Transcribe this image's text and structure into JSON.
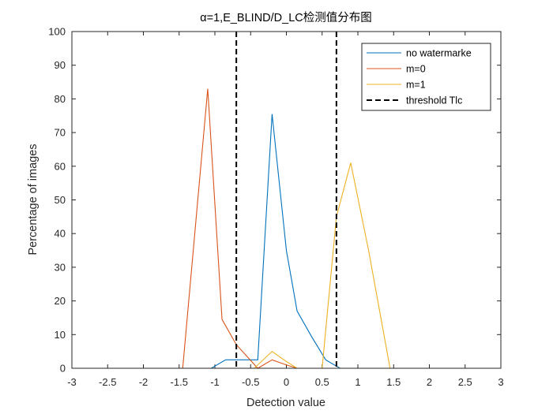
{
  "chart_data": {
    "type": "line",
    "title": "α=1,E_BLIND/D_LC检测值分布图",
    "xlabel": "Detection value",
    "ylabel": "Percentage of images",
    "xlim": [
      -3,
      3
    ],
    "ylim": [
      0,
      100
    ],
    "xticks": [
      -3,
      -2.5,
      -2,
      -1.5,
      -1,
      -0.5,
      0,
      0.5,
      1,
      1.5,
      2,
      2.5,
      3
    ],
    "xtick_labels": [
      "-3",
      "-2.5",
      "-2",
      "-1.5",
      "-1",
      "-0.5",
      "0",
      "0.5",
      "1",
      "1.5",
      "2",
      "2.5",
      "3"
    ],
    "yticks": [
      0,
      10,
      20,
      30,
      40,
      50,
      60,
      70,
      80,
      90,
      100
    ],
    "ytick_labels": [
      "0",
      "10",
      "20",
      "30",
      "40",
      "50",
      "60",
      "70",
      "80",
      "90",
      "100"
    ],
    "grid": false,
    "box": true,
    "legend_location": "top-right",
    "series": [
      {
        "name": "no watermarke",
        "color": "#0072BD",
        "line_style": "solid",
        "x": [
          -3,
          -1.05,
          -0.85,
          -0.6,
          -0.4,
          -0.2,
          0,
          0.15,
          0.35,
          0.55,
          0.75,
          3
        ],
        "y": [
          0,
          0,
          2.5,
          2.5,
          2.5,
          75.5,
          35,
          17,
          9.5,
          2.5,
          0,
          0
        ]
      },
      {
        "name": "m=0",
        "color": "#D95319",
        "line_style": "solid",
        "x": [
          -3,
          -1.45,
          -1.1,
          -0.9,
          -0.7,
          -0.4,
          -0.2,
          0,
          0.15,
          3
        ],
        "y": [
          0,
          0,
          83,
          14.5,
          7,
          0,
          2.5,
          1,
          0,
          0
        ]
      },
      {
        "name": "m=1",
        "color": "#EDB120",
        "line_style": "solid",
        "x": [
          -3,
          -0.45,
          -0.2,
          0,
          0.15,
          0.5,
          0.7,
          0.9,
          1.15,
          1.45,
          3
        ],
        "y": [
          0,
          0,
          5,
          2,
          0,
          0,
          45,
          61,
          35,
          0,
          0
        ]
      },
      {
        "name": "threshold Tlc",
        "color": "#000000",
        "line_style": "dashed",
        "type": "vertical_lines",
        "x_positions": [
          -0.7,
          0.7
        ]
      }
    ]
  }
}
